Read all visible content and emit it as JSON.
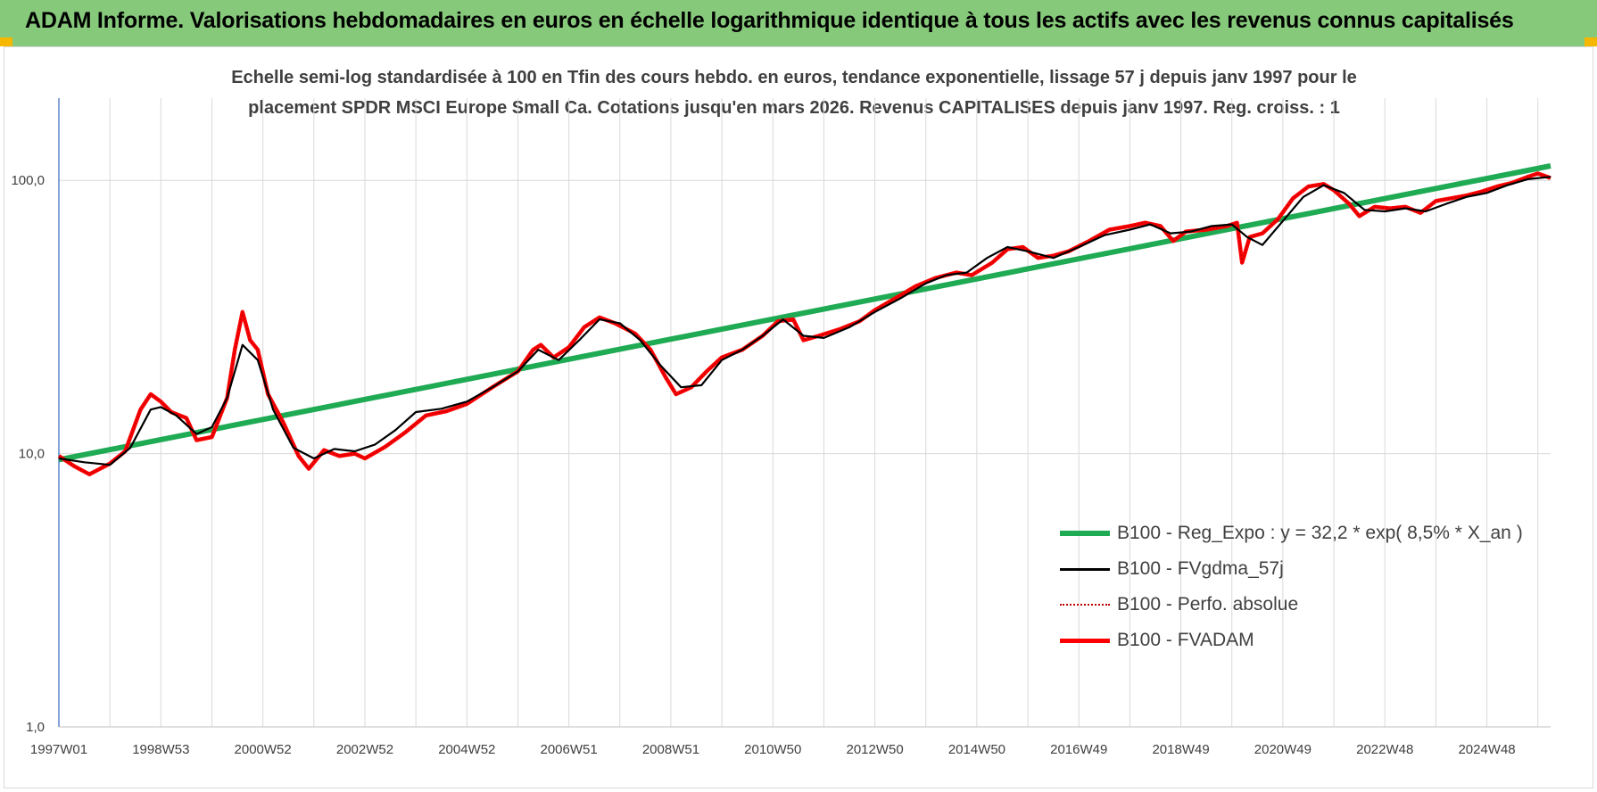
{
  "header": {
    "title": "ADAM Informe. Valorisations hebdomadaires en euros en échelle logarithmique identique à tous les actifs avec les revenus connus capitalisés"
  },
  "colors": {
    "header_bg": "#86c97a",
    "corner": "#f5b700",
    "reg_expo": "#1faa54",
    "fvgdma": "#000000",
    "perfo": "#c00000",
    "fvadam": "#ff0000",
    "grid": "#d9d9d9",
    "axis": "#4472c4"
  },
  "chart_data": {
    "type": "line",
    "title_line1": "Echelle semi-log standardisée à 100 en Tfin des cours hebdo. en euros, tendance exponentielle, lissage 57 j depuis janv 1997 pour le",
    "title_line2": "placement SPDR MSCI Europe Small Ca. Cotations jusqu'en mars 2026. Revenus CAPITALISES depuis janv 1997. Reg. croiss. : 1",
    "y_scale": "log",
    "ylim": [
      1,
      200
    ],
    "xlim": [
      1997.0,
      2026.25
    ],
    "y_ticks": [
      {
        "value": 1,
        "label": "1,0"
      },
      {
        "value": 10,
        "label": "10,0"
      },
      {
        "value": 100,
        "label": "100,0"
      }
    ],
    "x_ticks": [
      {
        "value": 1997.0,
        "label": "1997W01"
      },
      {
        "value": 1999.0,
        "label": "1998W53"
      },
      {
        "value": 2001.0,
        "label": "2000W52"
      },
      {
        "value": 2003.0,
        "label": "2002W52"
      },
      {
        "value": 2005.0,
        "label": "2004W52"
      },
      {
        "value": 2007.0,
        "label": "2006W51"
      },
      {
        "value": 2009.0,
        "label": "2008W51"
      },
      {
        "value": 2011.0,
        "label": "2010W50"
      },
      {
        "value": 2013.0,
        "label": "2012W50"
      },
      {
        "value": 2015.0,
        "label": "2014W50"
      },
      {
        "value": 2017.0,
        "label": "2016W49"
      },
      {
        "value": 2019.0,
        "label": "2018W49"
      },
      {
        "value": 2021.0,
        "label": "2020W49"
      },
      {
        "value": 2023.0,
        "label": "2022W48"
      },
      {
        "value": 2025.0,
        "label": "2024W48"
      }
    ],
    "grid": true,
    "legend_position": "bottom-right",
    "legend": [
      "B100 - Reg_Expo : y = 32,2 * exp( 8,5% *  X_an )",
      "B100 - FVgdma_57j",
      "B100 - Perfo. absolue",
      "B100 - FVADAM"
    ],
    "series": [
      {
        "name": "B100 - Reg_Expo : y = 32,2 * exp( 8,5% *  X_an )",
        "style": "trend",
        "x": [
          1997.0,
          2026.25
        ],
        "y": [
          9.5,
          113
        ]
      },
      {
        "name": "B100 - FVgdma_57j",
        "style": "smooth",
        "x": [
          1997.0,
          1997.5,
          1998.0,
          1998.4,
          1998.8,
          1999.0,
          1999.3,
          1999.7,
          2000.0,
          2000.3,
          2000.6,
          2000.9,
          2001.2,
          2001.6,
          2002.0,
          2002.4,
          2002.8,
          2003.2,
          2003.6,
          2004.0,
          2004.5,
          2005.0,
          2005.5,
          2006.0,
          2006.4,
          2006.8,
          2007.2,
          2007.6,
          2008.0,
          2008.4,
          2008.8,
          2009.2,
          2009.6,
          2010.0,
          2010.4,
          2010.8,
          2011.2,
          2011.6,
          2012.0,
          2012.5,
          2013.0,
          2013.5,
          2014.0,
          2014.4,
          2014.8,
          2015.2,
          2015.6,
          2016.0,
          2016.5,
          2017.0,
          2017.5,
          2018.0,
          2018.4,
          2018.8,
          2019.2,
          2019.6,
          2020.0,
          2020.3,
          2020.6,
          2021.0,
          2021.4,
          2021.8,
          2022.2,
          2022.6,
          2023.0,
          2023.4,
          2023.8,
          2024.2,
          2024.6,
          2025.0,
          2025.4,
          2025.8,
          2026.25
        ],
        "y": [
          9.6,
          9.3,
          9.1,
          10.5,
          14.5,
          14.8,
          13.8,
          11.8,
          12.5,
          16,
          25,
          22,
          14.5,
          10.5,
          9.6,
          10.4,
          10.2,
          10.8,
          12.2,
          14.2,
          14.6,
          15.5,
          17.5,
          20,
          24,
          22,
          26,
          31,
          30,
          26,
          21,
          17.5,
          17.8,
          22,
          24,
          27,
          31,
          27,
          26.5,
          29,
          33,
          37,
          42,
          45,
          46,
          52,
          57,
          55,
          52,
          57,
          63,
          66,
          69,
          64,
          65,
          68,
          69,
          62,
          58,
          71,
          87,
          96,
          90,
          78,
          77,
          79,
          77,
          82,
          87,
          90,
          96,
          101,
          103
        ]
      },
      {
        "name": "B100 - Perfo. absolue",
        "style": "dotted",
        "x": [
          1997.0,
          1997.3,
          1997.6,
          1998.0,
          1998.3,
          1998.6,
          1998.8,
          1999.0,
          1999.2,
          1999.5,
          1999.7,
          2000.0,
          2000.3,
          2000.45,
          2000.6,
          2000.75,
          2000.9,
          2001.1,
          2001.4,
          2001.7,
          2001.9,
          2002.2,
          2002.5,
          2002.8,
          2003.0,
          2003.4,
          2003.8,
          2004.2,
          2004.6,
          2005.0,
          2005.5,
          2006.0,
          2006.3,
          2006.45,
          2006.7,
          2007.0,
          2007.3,
          2007.6,
          2007.9,
          2008.3,
          2008.6,
          2008.9,
          2009.1,
          2009.4,
          2009.7,
          2010.0,
          2010.4,
          2010.8,
          2011.1,
          2011.4,
          2011.6,
          2011.9,
          2012.3,
          2012.7,
          2013.0,
          2013.4,
          2013.8,
          2014.2,
          2014.6,
          2014.9,
          2015.3,
          2015.6,
          2015.9,
          2016.2,
          2016.5,
          2016.8,
          2017.2,
          2017.6,
          2018.0,
          2018.3,
          2018.6,
          2018.85,
          2019.1,
          2019.5,
          2019.9,
          2020.1,
          2020.2,
          2020.35,
          2020.6,
          2020.9,
          2021.2,
          2021.5,
          2021.8,
          2022.0,
          2022.3,
          2022.5,
          2022.8,
          2023.1,
          2023.4,
          2023.7,
          2024.0,
          2024.3,
          2024.6,
          2024.9,
          2025.2,
          2025.5,
          2025.8,
          2026.0,
          2026.25
        ],
        "y": [
          9.8,
          9.0,
          8.4,
          9.2,
          10.2,
          14.5,
          16.5,
          15.5,
          14.2,
          13.5,
          11.2,
          11.5,
          16,
          24,
          33,
          26,
          24,
          16.5,
          13,
          9.8,
          8.8,
          10.3,
          9.8,
          10.0,
          9.6,
          10.6,
          12,
          13.8,
          14.3,
          15.2,
          17.5,
          20,
          24,
          25,
          22.5,
          24.5,
          29,
          31.5,
          30,
          27.5,
          24,
          19,
          16.5,
          17.5,
          20,
          22.5,
          24,
          27,
          30.5,
          31,
          26,
          27,
          28.5,
          30.5,
          33.5,
          37,
          41,
          44,
          46,
          45,
          50,
          56,
          57,
          52,
          53,
          55,
          60,
          66,
          68,
          70,
          68,
          60,
          65,
          66,
          68,
          70,
          50,
          62,
          64,
          72,
          86,
          95,
          97,
          92,
          82,
          74,
          80,
          79,
          80,
          76,
          84,
          86,
          88,
          91,
          95,
          98,
          103,
          106,
          102
        ]
      },
      {
        "name": "B100 - FVADAM",
        "style": "thick",
        "x": [
          1997.0,
          1997.3,
          1997.6,
          1998.0,
          1998.3,
          1998.6,
          1998.8,
          1999.0,
          1999.2,
          1999.5,
          1999.7,
          2000.0,
          2000.3,
          2000.45,
          2000.6,
          2000.75,
          2000.9,
          2001.1,
          2001.4,
          2001.7,
          2001.9,
          2002.2,
          2002.5,
          2002.8,
          2003.0,
          2003.4,
          2003.8,
          2004.2,
          2004.6,
          2005.0,
          2005.5,
          2006.0,
          2006.3,
          2006.45,
          2006.7,
          2007.0,
          2007.3,
          2007.6,
          2007.9,
          2008.3,
          2008.6,
          2008.9,
          2009.1,
          2009.4,
          2009.7,
          2010.0,
          2010.4,
          2010.8,
          2011.1,
          2011.4,
          2011.6,
          2011.9,
          2012.3,
          2012.7,
          2013.0,
          2013.4,
          2013.8,
          2014.2,
          2014.6,
          2014.9,
          2015.3,
          2015.6,
          2015.9,
          2016.2,
          2016.5,
          2016.8,
          2017.2,
          2017.6,
          2018.0,
          2018.3,
          2018.6,
          2018.85,
          2019.1,
          2019.5,
          2019.9,
          2020.1,
          2020.2,
          2020.35,
          2020.6,
          2020.9,
          2021.2,
          2021.5,
          2021.8,
          2022.0,
          2022.3,
          2022.5,
          2022.8,
          2023.1,
          2023.4,
          2023.7,
          2024.0,
          2024.3,
          2024.6,
          2024.9,
          2025.2,
          2025.5,
          2025.8,
          2026.0,
          2026.25
        ],
        "y": [
          9.8,
          9.0,
          8.4,
          9.2,
          10.2,
          14.5,
          16.5,
          15.5,
          14.2,
          13.5,
          11.2,
          11.5,
          16,
          24,
          33,
          26,
          24,
          16.5,
          13,
          9.8,
          8.8,
          10.3,
          9.8,
          10.0,
          9.6,
          10.6,
          12,
          13.8,
          14.3,
          15.2,
          17.5,
          20,
          24,
          25,
          22.5,
          24.5,
          29,
          31.5,
          30,
          27.5,
          24,
          19,
          16.5,
          17.5,
          20,
          22.5,
          24,
          27,
          30.5,
          31,
          26,
          27,
          28.5,
          30.5,
          33.5,
          37,
          41,
          44,
          46,
          45,
          50,
          56,
          57,
          52,
          53,
          55,
          60,
          66,
          68,
          70,
          68,
          60,
          65,
          66,
          68,
          70,
          50,
          62,
          64,
          72,
          86,
          95,
          97,
          92,
          82,
          74,
          80,
          79,
          80,
          76,
          84,
          86,
          88,
          91,
          95,
          98,
          103,
          106,
          102
        ]
      }
    ]
  }
}
